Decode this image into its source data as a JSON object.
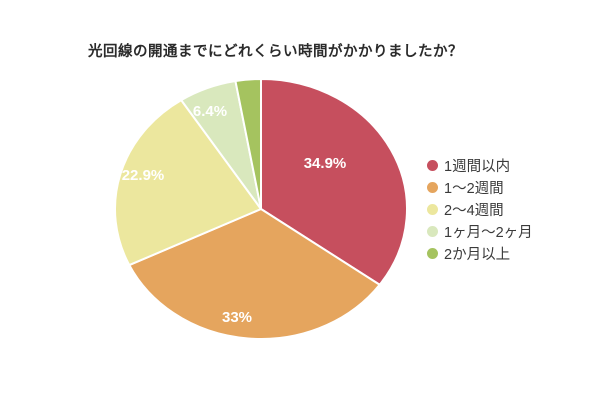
{
  "title": "光回線の開通までにどれくらい時間がかかりましたか？",
  "chart_data": {
    "type": "pie",
    "title": "光回線の開通までにどれくらい時間がかかりましたか？",
    "labels": [
      "1週間以内",
      "1〜2週間",
      "2〜4週間",
      "1ヶ月〜2ヶ月",
      "2か月以上"
    ],
    "values": [
      34.9,
      33,
      22.9,
      6.4,
      2.8
    ],
    "value_labels": [
      "34.9%",
      "33%",
      "22.9%",
      "6.4%",
      ""
    ],
    "colors": [
      "#c64f5e",
      "#e5a55e",
      "#ece79e",
      "#d9e8bd",
      "#a5c35f"
    ],
    "slice_label_color": "#ffffff",
    "legend_position": "right",
    "start_angle_deg": 0,
    "direction": "clockwise",
    "background": "#ffffff",
    "title_color": "#2b2b2b",
    "legend_text_color": "#3a3a3a"
  }
}
